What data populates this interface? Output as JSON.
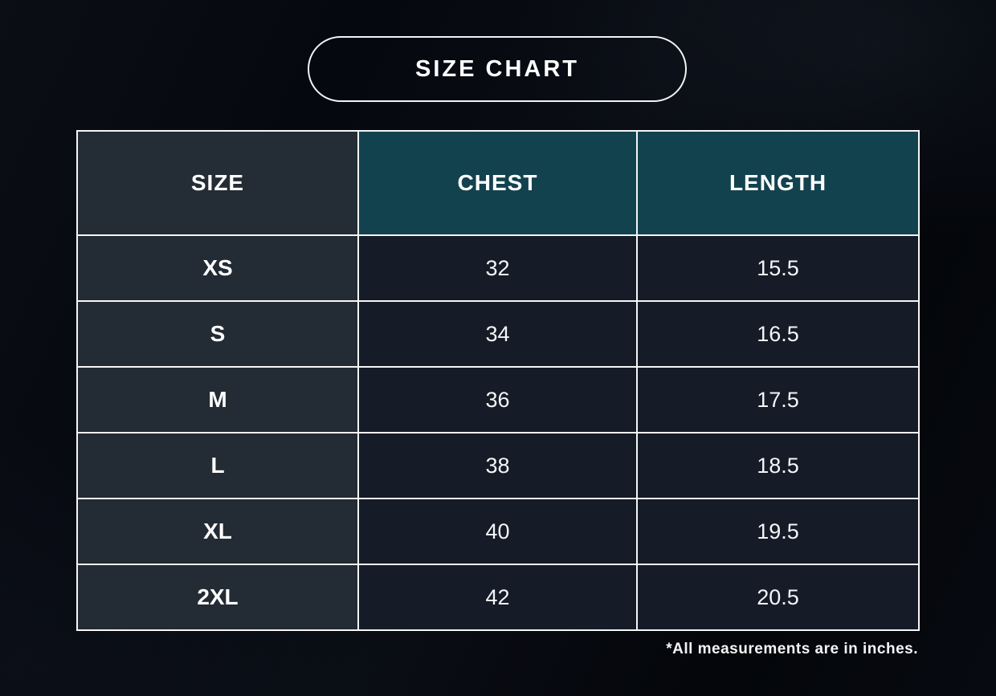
{
  "title": "SIZE CHART",
  "table": {
    "headers": [
      "SIZE",
      "CHEST",
      "LENGTH"
    ],
    "rows": [
      {
        "size": "XS",
        "chest": "32",
        "length": "15.5"
      },
      {
        "size": "S",
        "chest": "34",
        "length": "16.5"
      },
      {
        "size": "M",
        "chest": "36",
        "length": "17.5"
      },
      {
        "size": "L",
        "chest": "38",
        "length": "18.5"
      },
      {
        "size": "XL",
        "chest": "40",
        "length": "19.5"
      },
      {
        "size": "2XL",
        "chest": "42",
        "length": "20.5"
      }
    ]
  },
  "footnote": "*All measurements are in inches.",
  "colors": {
    "background": "#06080f",
    "accent_teal": "#13424f",
    "size_column_bg": "#232b34",
    "data_cell_bg": "#151c27",
    "border": "#f5f6f7",
    "text": "#ffffff"
  },
  "chart_data": {
    "type": "table",
    "title": "SIZE CHART",
    "columns": [
      "SIZE",
      "CHEST",
      "LENGTH"
    ],
    "rows": [
      [
        "XS",
        32,
        15.5
      ],
      [
        "S",
        34,
        16.5
      ],
      [
        "M",
        36,
        17.5
      ],
      [
        "L",
        38,
        18.5
      ],
      [
        "XL",
        40,
        19.5
      ],
      [
        "2XL",
        42,
        20.5
      ]
    ],
    "note": "*All measurements are in inches."
  }
}
